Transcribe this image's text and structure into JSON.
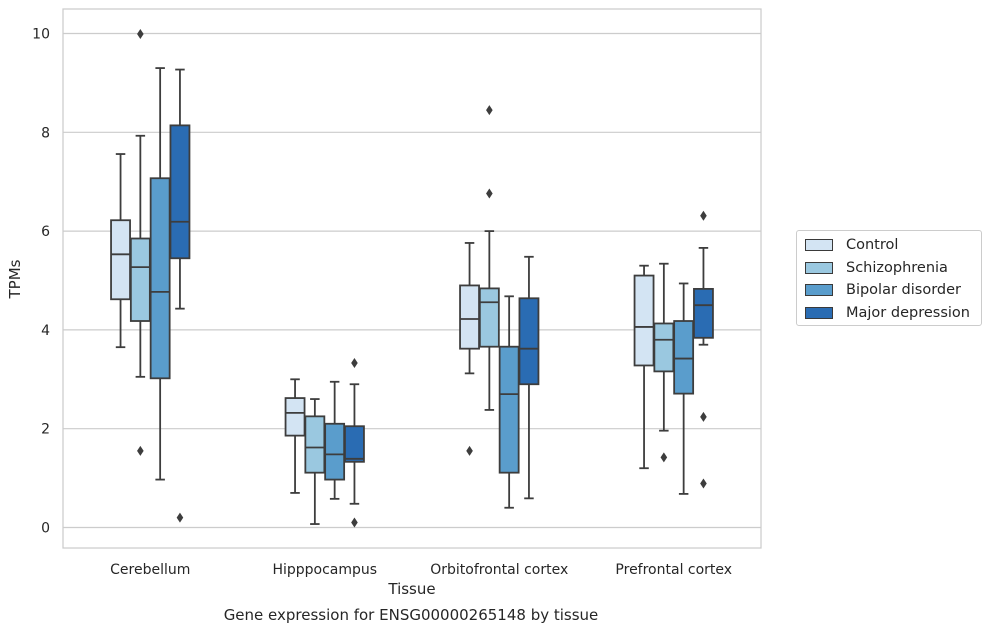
{
  "chart_data": {
    "type": "box",
    "xlabel": "Tissue",
    "ylabel": "TPMs",
    "caption": "Gene expression for ENSG00000265148 by tissue",
    "ylim": [
      -0.4,
      10.5
    ],
    "yticks": [
      0,
      2,
      4,
      6,
      8,
      10
    ],
    "grid": "horizontal",
    "legend_position": "right",
    "categories": [
      "Cerebellum",
      "Hipppocampus",
      "Orbitofrontal cortex",
      "Prefrontal cortex"
    ],
    "series": [
      {
        "name": "Control",
        "color": "#d3e4f3",
        "boxes": [
          {
            "low": 3.65,
            "q1": 4.62,
            "median": 5.53,
            "q3": 6.22,
            "high": 7.56,
            "outliers": []
          },
          {
            "low": 0.7,
            "q1": 1.86,
            "median": 2.32,
            "q3": 2.62,
            "high": 3.0,
            "outliers": []
          },
          {
            "low": 3.12,
            "q1": 3.62,
            "median": 4.22,
            "q3": 4.9,
            "high": 5.76,
            "outliers": [
              1.55
            ]
          },
          {
            "low": 1.2,
            "q1": 3.28,
            "median": 4.06,
            "q3": 5.1,
            "high": 5.3,
            "outliers": []
          }
        ]
      },
      {
        "name": "Schizophrenia",
        "color": "#9ac8e0",
        "boxes": [
          {
            "low": 3.05,
            "q1": 4.18,
            "median": 5.27,
            "q3": 5.85,
            "high": 7.93,
            "outliers": [
              1.55,
              9.99
            ]
          },
          {
            "low": 0.07,
            "q1": 1.11,
            "median": 1.62,
            "q3": 2.25,
            "high": 2.6,
            "outliers": []
          },
          {
            "low": 2.38,
            "q1": 3.66,
            "median": 4.56,
            "q3": 4.84,
            "high": 6.0,
            "outliers": [
              6.76,
              8.45
            ]
          },
          {
            "low": 1.96,
            "q1": 3.16,
            "median": 3.8,
            "q3": 4.13,
            "high": 5.34,
            "outliers": [
              1.42
            ]
          }
        ]
      },
      {
        "name": "Bipolar disorder",
        "color": "#5a9dcc",
        "boxes": [
          {
            "low": 0.97,
            "q1": 3.02,
            "median": 4.77,
            "q3": 7.07,
            "high": 9.3,
            "outliers": []
          },
          {
            "low": 0.58,
            "q1": 0.97,
            "median": 1.48,
            "q3": 2.1,
            "high": 2.95,
            "outliers": []
          },
          {
            "low": 0.4,
            "q1": 1.11,
            "median": 2.7,
            "q3": 3.66,
            "high": 4.68,
            "outliers": []
          },
          {
            "low": 0.68,
            "q1": 2.71,
            "median": 3.42,
            "q3": 4.18,
            "high": 4.94,
            "outliers": []
          }
        ]
      },
      {
        "name": "Major depression",
        "color": "#2a6cb3",
        "boxes": [
          {
            "low": 4.43,
            "q1": 5.45,
            "median": 6.19,
            "q3": 8.14,
            "high": 9.27,
            "outliers": [
              0.2
            ]
          },
          {
            "low": 0.48,
            "q1": 1.33,
            "median": 1.39,
            "q3": 2.05,
            "high": 2.9,
            "outliers": [
              0.1,
              3.33
            ]
          },
          {
            "low": 0.59,
            "q1": 2.9,
            "median": 3.62,
            "q3": 4.64,
            "high": 5.48,
            "outliers": []
          },
          {
            "low": 3.7,
            "q1": 3.84,
            "median": 4.5,
            "q3": 4.83,
            "high": 5.66,
            "outliers": [
              0.89,
              2.24,
              6.31
            ]
          }
        ]
      }
    ]
  }
}
